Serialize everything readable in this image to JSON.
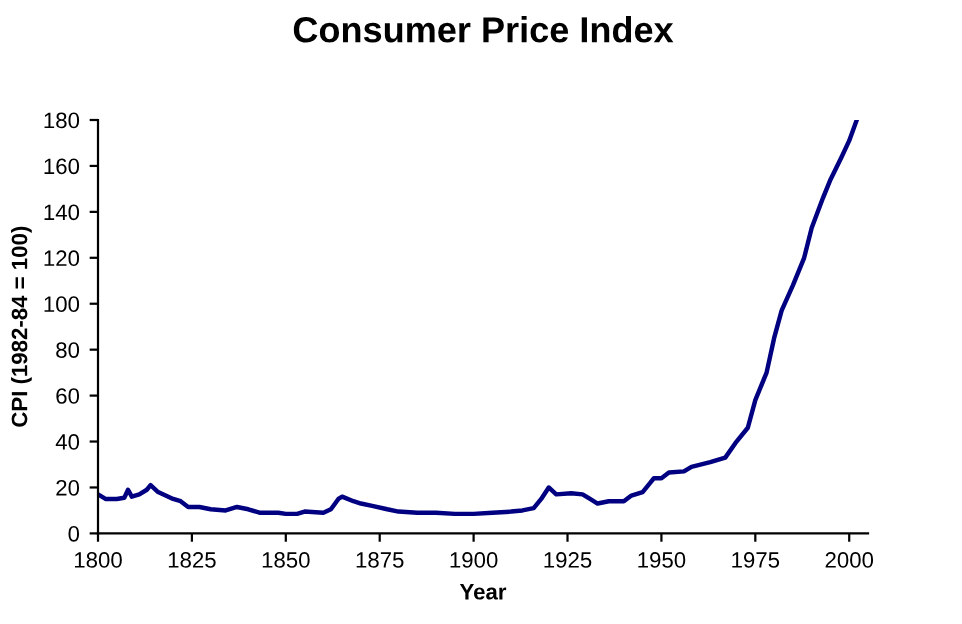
{
  "chart_data": {
    "type": "line",
    "title": "Consumer Price Index",
    "xlabel": "Year",
    "ylabel": "CPI (1982-84 = 100)",
    "x": [
      1800,
      1802,
      1805,
      1807,
      1808,
      1809,
      1811,
      1813,
      1814,
      1816,
      1820,
      1822,
      1824,
      1827,
      1830,
      1834,
      1837,
      1840,
      1843,
      1848,
      1850,
      1853,
      1855,
      1860,
      1862,
      1864,
      1865,
      1868,
      1870,
      1873,
      1877,
      1880,
      1885,
      1890,
      1895,
      1900,
      1905,
      1910,
      1913,
      1916,
      1918,
      1920,
      1922,
      1926,
      1929,
      1931,
      1933,
      1936,
      1940,
      1942,
      1945,
      1947,
      1948,
      1950,
      1952,
      1956,
      1958,
      1963,
      1967,
      1970,
      1973,
      1975,
      1978,
      1980,
      1982,
      1985,
      1988,
      1990,
      1993,
      1995,
      1998,
      2000,
      2002
    ],
    "series": [
      {
        "color": "#000080",
        "values": [
          17,
          15,
          15,
          15.5,
          19,
          16,
          17,
          19,
          21,
          18,
          15,
          14,
          11.5,
          11.5,
          10.5,
          10,
          11.5,
          10.5,
          9,
          9,
          8.5,
          8.5,
          9.5,
          9,
          10.5,
          15,
          16,
          14,
          13,
          12,
          10.5,
          9.5,
          9,
          9,
          8.5,
          8.5,
          9,
          9.5,
          10,
          11,
          15,
          20,
          17,
          17.5,
          17,
          15,
          13,
          14,
          14,
          16.5,
          18,
          22,
          24,
          24,
          26.5,
          27,
          29,
          31,
          33,
          40,
          46,
          58,
          70,
          85,
          97,
          108,
          120,
          133,
          146,
          154,
          164,
          171,
          180
        ]
      }
    ],
    "xlim": [
      1800,
      2005
    ],
    "xticks": [
      1800,
      1825,
      1850,
      1875,
      1900,
      1925,
      1950,
      1975,
      2000
    ],
    "ylim": [
      0,
      180
    ],
    "yticks": [
      0,
      20,
      40,
      60,
      80,
      100,
      120,
      140,
      160,
      180
    ],
    "grid": false,
    "legend": false,
    "marker": "none",
    "line_style": "solid"
  }
}
